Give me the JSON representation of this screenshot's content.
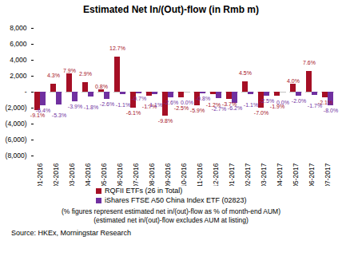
{
  "chart_data": {
    "type": "bar",
    "title": "Estimated Net In/(Out)-flow (in Rmb m)",
    "categories": [
      "01-2016",
      "02-2016",
      "03-2016",
      "04-2016",
      "05-2016",
      "06-2016",
      "07-2016",
      "08-2016",
      "09-2016",
      "10-2016",
      "11-2016",
      "12-2016",
      "01-2017",
      "02-2017",
      "03-2017",
      "04-2017",
      "05-2017",
      "06-2017",
      "07-2017"
    ],
    "series": [
      {
        "name": "RQFII ETFs (26 in Total)",
        "color": "#A50F25",
        "values": [
          -2300,
          1000,
          2300,
          1200,
          300,
          4400,
          -2000,
          -500,
          -3000,
          -700,
          -1700,
          -300,
          -900,
          1300,
          -2000,
          -500,
          1000,
          2600,
          -700
        ],
        "pct_labels": [
          "-9.1%",
          "4.3%",
          "7.9%",
          "2.9%",
          "0.8%",
          "12.7%",
          "-6.1%",
          "-1.7%",
          "-9.8%",
          "-2.5%",
          "-5.9%",
          "-1.2%",
          "-3.7%",
          "4.5%",
          "-7.0%",
          "-1.9%",
          "4.0%",
          "7.6%",
          "-2.1%"
        ]
      },
      {
        "name": "iShares FTSE A50 China Index ETF (02823)",
        "color": "#7030A0",
        "values": [
          -1700,
          -1600,
          -1200,
          -600,
          -900,
          -300,
          -200,
          -300,
          -700,
          0,
          -200,
          -800,
          -1400,
          -300,
          -500,
          0,
          -500,
          -400,
          -1700
        ],
        "pct_labels": [
          "-6.4%",
          "-5.3%",
          "-3.9%",
          "-1.8%",
          "-2.6%",
          "-1.1%",
          "-0.7%",
          "-1.1%",
          "-2.6%",
          "0.0%",
          "-0.8%",
          "-2.7%",
          "-6.2%",
          "-1.1%",
          "-2.5%",
          "0.0%",
          "-2.0%",
          "-1.7%",
          "-8.0%"
        ]
      }
    ],
    "ylim": [
      -8000,
      8000
    ],
    "yticks": [
      {
        "value": -8000,
        "label": "(8,000)"
      },
      {
        "value": -6000,
        "label": "(6,000)"
      },
      {
        "value": -4000,
        "label": "(4,000)"
      },
      {
        "value": -2000,
        "label": "(2,000)"
      },
      {
        "value": 0,
        "label": "-"
      },
      {
        "value": 2000,
        "label": "2,000"
      },
      {
        "value": 4000,
        "label": "4,000"
      },
      {
        "value": 6000,
        "label": "6,000"
      },
      {
        "value": 8000,
        "label": "8,000"
      }
    ],
    "legend": "bottom",
    "notes": [
      "(% figures represent estimated net in/(out)-flow as % of month-end AUM)",
      "(estimated net in/(out)-flow excludes AUM at listing)"
    ],
    "source": "Source: HKEx, Morningstar Research"
  }
}
